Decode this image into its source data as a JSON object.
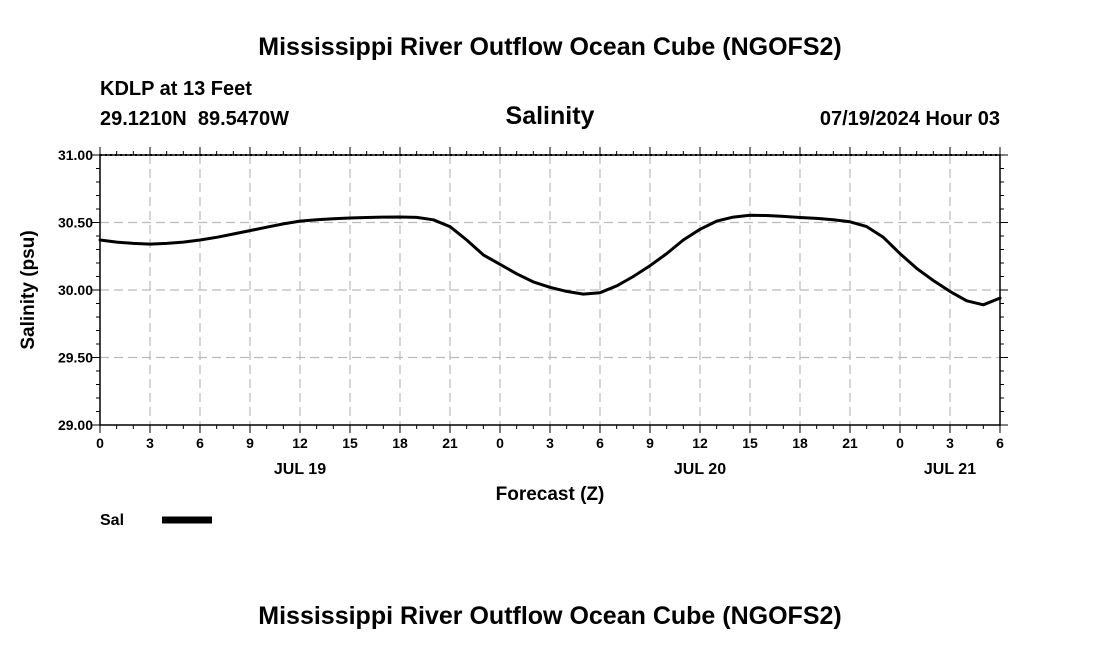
{
  "chart_data": {
    "type": "line",
    "title": "Mississippi River Outflow Ocean Cube (NGOFS2)",
    "footer_title": "Mississippi River Outflow Ocean Cube (NGOFS2)",
    "station": "KDLP at 13 Feet",
    "coordinates": "29.1210N  89.5470W",
    "subtitle": "Salinity",
    "timestamp": "07/19/2024 Hour 03",
    "xlabel": "Forecast (Z)",
    "ylabel": "Salinity (psu)",
    "ylim": [
      29.0,
      31.0
    ],
    "xlim": [
      0,
      54
    ],
    "yticks": [
      "29.00",
      "29.50",
      "30.00",
      "30.50",
      "31.00"
    ],
    "ytick_values": [
      29.0,
      29.5,
      30.0,
      30.5,
      31.0
    ],
    "xticks": [
      "0",
      "3",
      "6",
      "9",
      "12",
      "15",
      "18",
      "21",
      "0",
      "3",
      "6",
      "9",
      "12",
      "15",
      "18",
      "21",
      "0",
      "3",
      "6"
    ],
    "dates": [
      {
        "label": "JUL 19",
        "hour": 12
      },
      {
        "label": "JUL 20",
        "hour": 36
      },
      {
        "label": "JUL 21",
        "hour": 51
      }
    ],
    "grid": true,
    "legend_position": "bottom-left",
    "series": [
      {
        "name": "Sal",
        "color": "#000000",
        "x": [
          0,
          1,
          2,
          3,
          4,
          5,
          6,
          7,
          8,
          9,
          10,
          11,
          12,
          13,
          14,
          15,
          16,
          17,
          18,
          19,
          20,
          21,
          22,
          23,
          24,
          25,
          26,
          27,
          28,
          29,
          30,
          31,
          32,
          33,
          34,
          35,
          36,
          37,
          38,
          39,
          40,
          41,
          42,
          43,
          44,
          45,
          46,
          47,
          48,
          49,
          50,
          51,
          52,
          53,
          54
        ],
        "values": [
          30.37,
          30.355,
          30.345,
          30.34,
          30.345,
          30.355,
          30.37,
          30.39,
          30.415,
          30.44,
          30.465,
          30.49,
          30.51,
          30.52,
          30.528,
          30.533,
          30.537,
          30.54,
          30.541,
          30.538,
          30.52,
          30.47,
          30.37,
          30.26,
          30.19,
          30.12,
          30.06,
          30.02,
          29.99,
          29.97,
          29.98,
          30.03,
          30.1,
          30.18,
          30.27,
          30.37,
          30.45,
          30.51,
          30.54,
          30.553,
          30.552,
          30.545,
          30.537,
          30.53,
          30.52,
          30.505,
          30.47,
          30.39,
          30.27,
          30.16,
          30.07,
          29.99,
          29.92,
          29.89,
          29.94
        ]
      }
    ]
  },
  "colors": {
    "background": "#ffffff",
    "grid": "#bbbbbb",
    "line": "#000000"
  }
}
